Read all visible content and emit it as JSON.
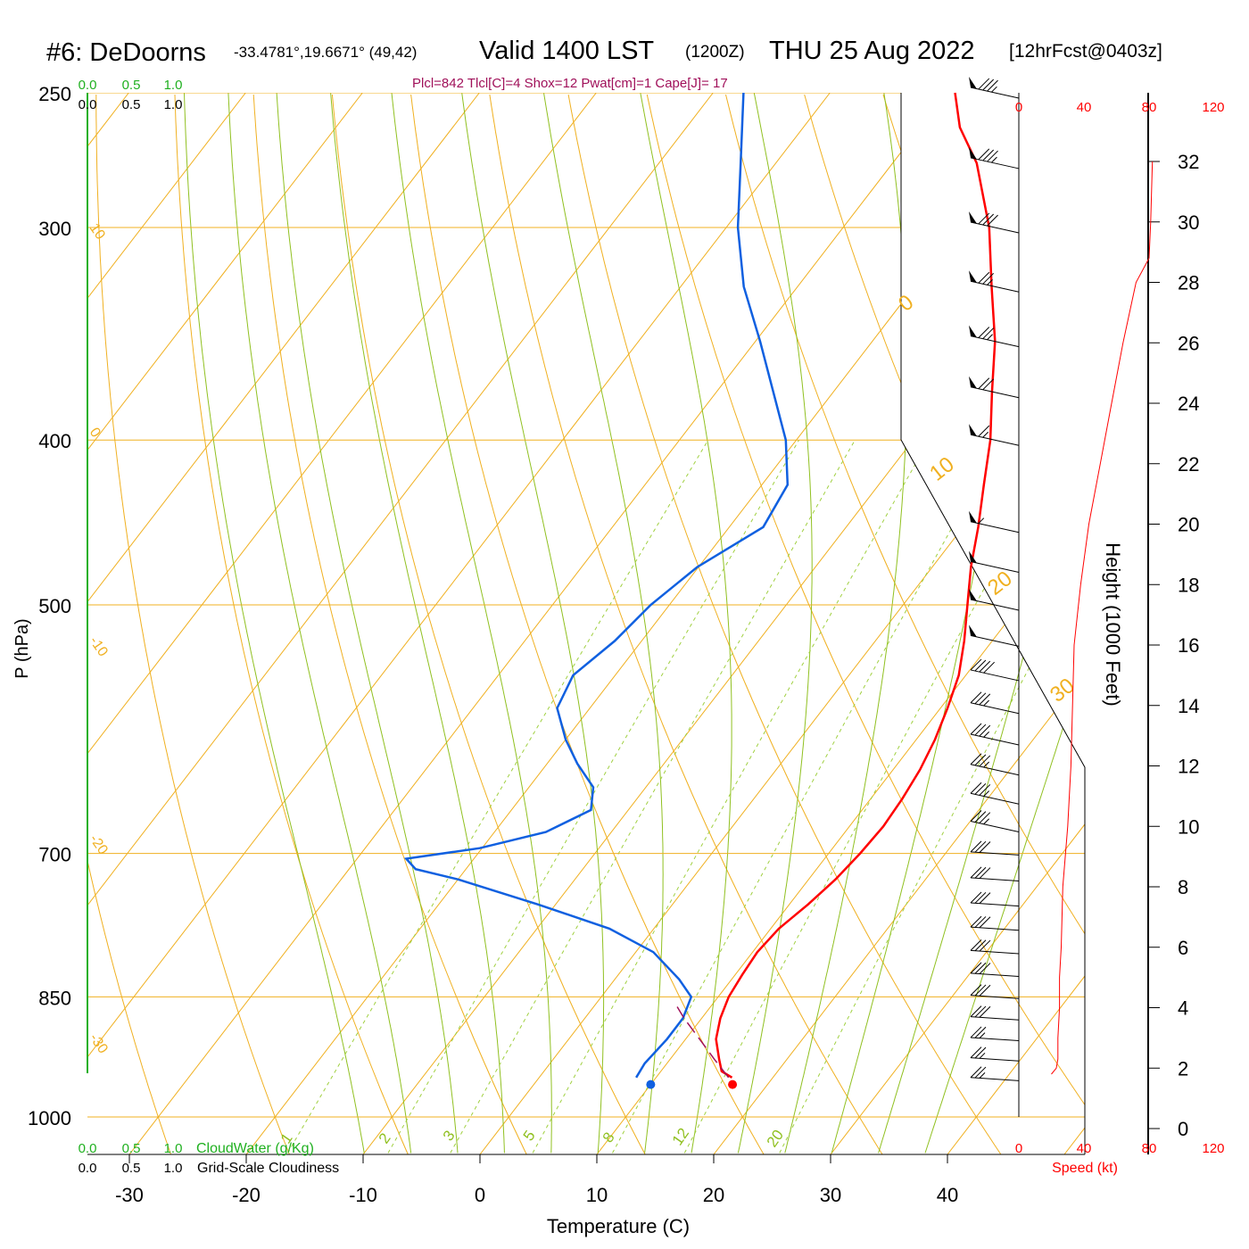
{
  "title": {
    "station": "#6: DeDoorns",
    "coords": "-33.4781°,19.6671° (49,42)",
    "valid": "Valid 1400 LST",
    "utc": "(1200Z)",
    "date": "THU 25 Aug 2022",
    "forecast": "[12hrFcst@0403z]"
  },
  "indices": "Plcl=842 Tlcl[C]=4 Shox=12 Pwat[cm]=1 Cape[J]= 17",
  "colors": {
    "temperature": "#ff0000",
    "dewpoint": "#1060e0",
    "isotherm_adiabat": "#f0b020",
    "moist_adiabat": "#90c020",
    "mixing_ratio": "#a0d040",
    "indices": "#a0105a",
    "cloud_axis": "#20b020",
    "wind_speed": "#ff0000"
  },
  "cloud_scales": {
    "cloud_water_ticks": [
      "0.0",
      "0.5",
      "1.0"
    ],
    "cloudiness_ticks": [
      "0.0",
      "0.5",
      "1.0"
    ],
    "cloud_water_label": "CloudWater (g/Kg)",
    "cloudiness_label": "Grid-Scale Cloudiness"
  },
  "speed_axis": {
    "ticks": [
      "0",
      "40",
      "80",
      "120"
    ],
    "label": "Speed (kt)"
  },
  "chart_data": {
    "type": "line",
    "subtype": "skew-T log-P sounding",
    "xlabel": "Temperature (C)",
    "ylabel": "P (hPa)",
    "height_label": "Height (1000 Feet)",
    "x_ticks": [
      -30,
      -20,
      -10,
      0,
      10,
      20,
      30,
      40
    ],
    "pressure_ticks": [
      250,
      300,
      400,
      500,
      700,
      850,
      1000
    ],
    "height_ticks": [
      0,
      2,
      4,
      6,
      8,
      10,
      12,
      14,
      16,
      18,
      20,
      22,
      24,
      26,
      28,
      30,
      32
    ],
    "series": [
      {
        "key": "temperature",
        "points": [
          [
            948,
            16.5
          ],
          [
            940,
            15.2
          ],
          [
            925,
            14.2
          ],
          [
            900,
            12.6
          ],
          [
            875,
            11.6
          ],
          [
            850,
            10.9
          ],
          [
            825,
            10.6
          ],
          [
            800,
            10.4
          ],
          [
            775,
            10.7
          ],
          [
            750,
            11.6
          ],
          [
            725,
            12.3
          ],
          [
            700,
            12.7
          ],
          [
            675,
            12.9
          ],
          [
            650,
            12.7
          ],
          [
            625,
            12.3
          ],
          [
            600,
            11.6
          ],
          [
            575,
            10.6
          ],
          [
            550,
            9.4
          ],
          [
            525,
            7.6
          ],
          [
            500,
            5.5
          ],
          [
            475,
            3.3
          ],
          [
            450,
            1.3
          ],
          [
            425,
            -1.0
          ],
          [
            400,
            -3.4
          ],
          [
            375,
            -6.4
          ],
          [
            350,
            -9.5
          ],
          [
            325,
            -13.4
          ],
          [
            300,
            -17.5
          ],
          [
            275,
            -22.8
          ],
          [
            262,
            -26.6
          ],
          [
            250,
            -29.3
          ]
        ]
      },
      {
        "key": "dewpoint",
        "points": [
          [
            948,
            8.3
          ],
          [
            930,
            8.1
          ],
          [
            900,
            8.4
          ],
          [
            875,
            8.4
          ],
          [
            850,
            7.7
          ],
          [
            830,
            5.5
          ],
          [
            800,
            1.5
          ],
          [
            775,
            -3.8
          ],
          [
            750,
            -11.5
          ],
          [
            725,
            -20.0
          ],
          [
            715,
            -24.3
          ],
          [
            705,
            -25.8
          ],
          [
            695,
            -20.2
          ],
          [
            680,
            -15.6
          ],
          [
            660,
            -13.2
          ],
          [
            640,
            -14.5
          ],
          [
            620,
            -17.4
          ],
          [
            600,
            -20.0
          ],
          [
            575,
            -22.8
          ],
          [
            550,
            -23.6
          ],
          [
            525,
            -22.3
          ],
          [
            500,
            -21.6
          ],
          [
            475,
            -20.1
          ],
          [
            450,
            -17.1
          ],
          [
            425,
            -17.8
          ],
          [
            400,
            -20.9
          ],
          [
            375,
            -25.1
          ],
          [
            350,
            -29.6
          ],
          [
            325,
            -34.6
          ],
          [
            300,
            -39.0
          ],
          [
            275,
            -43.0
          ],
          [
            250,
            -47.4
          ]
        ]
      },
      {
        "key": "parcel",
        "points": [
          [
            948,
            16.2
          ],
          [
            925,
            13.8
          ],
          [
            900,
            11.2
          ],
          [
            875,
            8.5
          ],
          [
            860,
            7.0
          ]
        ]
      }
    ],
    "surface_temperature": [
      957,
      17.0
    ],
    "surface_dewpoint": [
      957,
      10.0
    ],
    "isotherm_labels": [
      "30",
      "20",
      "10",
      "0",
      "-10",
      "-20",
      "-30"
    ],
    "mixing_ratio_labels": [
      "1",
      "2",
      "3",
      "5",
      "8",
      "12",
      "20"
    ],
    "wind_speed_profile": [
      [
        1.8,
        20
      ],
      [
        2.0,
        23
      ],
      [
        2.3,
        24
      ],
      [
        3.0,
        24
      ],
      [
        4.0,
        25
      ],
      [
        5.0,
        25
      ],
      [
        6.0,
        26
      ],
      [
        8.0,
        27
      ],
      [
        10.0,
        30
      ],
      [
        12.0,
        32
      ],
      [
        14.0,
        33
      ],
      [
        16.0,
        34
      ],
      [
        18.0,
        38
      ],
      [
        20.0,
        43
      ],
      [
        22.0,
        50
      ],
      [
        24.0,
        57
      ],
      [
        26.0,
        64
      ],
      [
        28.0,
        72
      ],
      [
        28.8,
        80
      ],
      [
        30.0,
        81
      ],
      [
        32.0,
        82
      ],
      [
        34.5,
        83
      ]
    ],
    "wind_barbs": [
      {
        "p": 250,
        "dir": 280,
        "spd": 85
      },
      {
        "p": 275,
        "dir": 280,
        "spd": 85
      },
      {
        "p": 300,
        "dir": 280,
        "spd": 80
      },
      {
        "p": 325,
        "dir": 280,
        "spd": 75
      },
      {
        "p": 350,
        "dir": 280,
        "spd": 75
      },
      {
        "p": 375,
        "dir": 275,
        "spd": 70
      },
      {
        "p": 400,
        "dir": 275,
        "spd": 65
      },
      {
        "p": 450,
        "dir": 275,
        "spd": 55
      },
      {
        "p": 475,
        "dir": 275,
        "spd": 50
      },
      {
        "p": 500,
        "dir": 275,
        "spd": 50
      },
      {
        "p": 525,
        "dir": 275,
        "spd": 50
      },
      {
        "p": 550,
        "dir": 280,
        "spd": 40
      },
      {
        "p": 575,
        "dir": 280,
        "spd": 35
      },
      {
        "p": 600,
        "dir": 280,
        "spd": 35
      },
      {
        "p": 625,
        "dir": 280,
        "spd": 35
      },
      {
        "p": 650,
        "dir": 275,
        "spd": 35
      },
      {
        "p": 675,
        "dir": 275,
        "spd": 35
      },
      {
        "p": 700,
        "dir": 270,
        "spd": 30
      },
      {
        "p": 725,
        "dir": 265,
        "spd": 30
      },
      {
        "p": 750,
        "dir": 265,
        "spd": 30
      },
      {
        "p": 775,
        "dir": 265,
        "spd": 30
      },
      {
        "p": 800,
        "dir": 265,
        "spd": 30
      },
      {
        "p": 825,
        "dir": 265,
        "spd": 30
      },
      {
        "p": 850,
        "dir": 265,
        "spd": 30
      },
      {
        "p": 875,
        "dir": 265,
        "spd": 30
      },
      {
        "p": 900,
        "dir": 265,
        "spd": 25
      },
      {
        "p": 925,
        "dir": 265,
        "spd": 25
      },
      {
        "p": 950,
        "dir": 265,
        "spd": 25
      }
    ]
  }
}
